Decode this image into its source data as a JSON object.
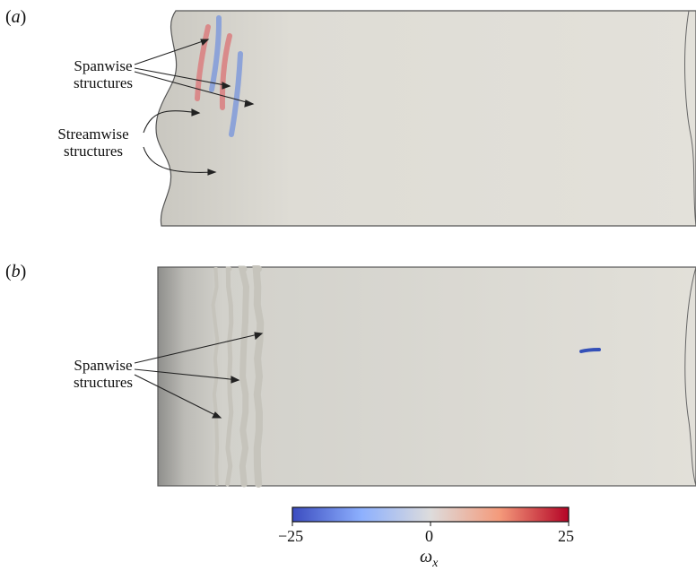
{
  "panels": [
    {
      "id": "a",
      "label": "a",
      "annotations": [
        {
          "key": "spanwise",
          "lines": [
            "Spanwise",
            "structures"
          ]
        },
        {
          "key": "streamwise",
          "lines": [
            "Streamwise",
            "structures"
          ]
        }
      ]
    },
    {
      "id": "b",
      "label": "b",
      "annotations": [
        {
          "key": "spanwise",
          "lines": [
            "Spanwise",
            "structures"
          ]
        }
      ]
    }
  ],
  "colorbar": {
    "variable": "ω",
    "subscript": "x",
    "min_label": "−25",
    "mid_label": "0",
    "max_label": "25",
    "colors": [
      "#3b4cc0",
      "#dddcdc",
      "#b40426"
    ]
  }
}
